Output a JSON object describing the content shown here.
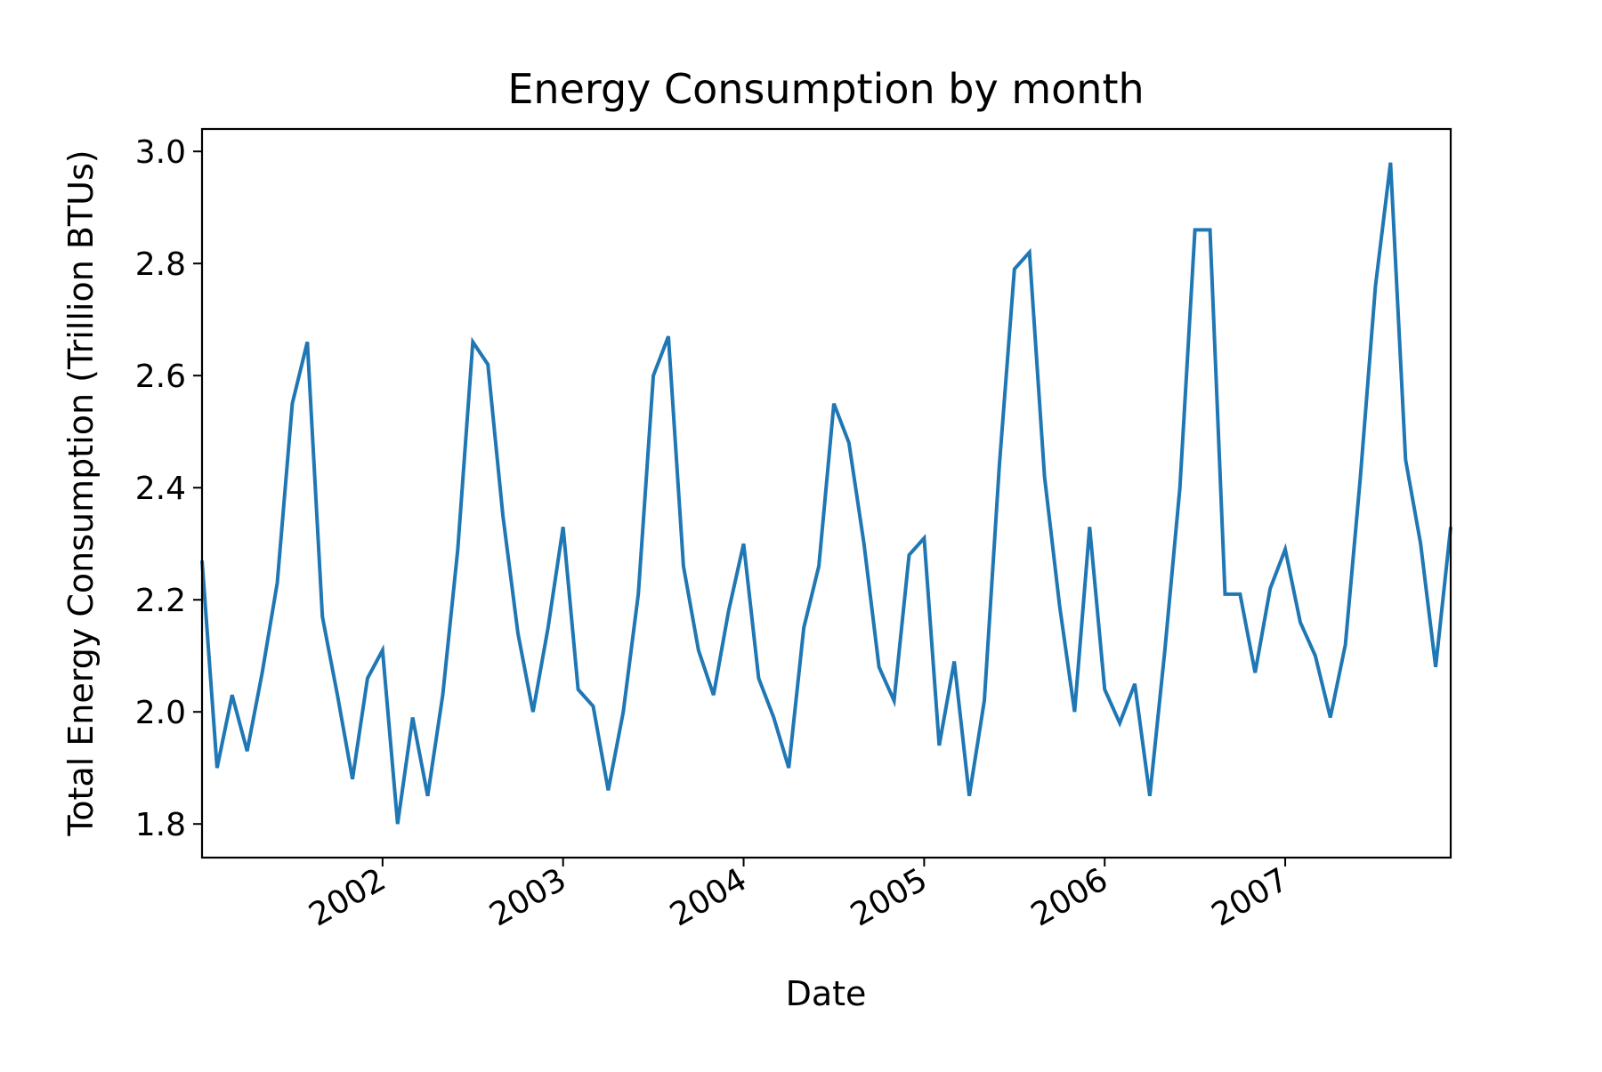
{
  "chart_data": {
    "type": "line",
    "title": "Energy Consumption by month",
    "xlabel": "Date",
    "ylabel": "Total Energy Consumption (Trillion BTUs)",
    "xlim": [
      "2001-01",
      "2007-12"
    ],
    "ylim": [
      1.74,
      3.04
    ],
    "y_ticks": [
      1.8,
      2.0,
      2.2,
      2.4,
      2.6,
      2.8,
      3.0
    ],
    "y_tick_labels": [
      "1.8",
      "2.0",
      "2.2",
      "2.4",
      "2.6",
      "2.8",
      "3.0"
    ],
    "x_ticks": [
      "2002-01",
      "2003-01",
      "2004-01",
      "2005-01",
      "2006-01",
      "2007-01"
    ],
    "x_tick_labels": [
      "2002",
      "2003",
      "2004",
      "2005",
      "2006",
      "2007"
    ],
    "grid": false,
    "series": [
      {
        "color": "#1f77b4",
        "x": [
          "2001-01",
          "2001-02",
          "2001-03",
          "2001-04",
          "2001-05",
          "2001-06",
          "2001-07",
          "2001-08",
          "2001-09",
          "2001-10",
          "2001-11",
          "2001-12",
          "2002-01",
          "2002-02",
          "2002-03",
          "2002-04",
          "2002-05",
          "2002-06",
          "2002-07",
          "2002-08",
          "2002-09",
          "2002-10",
          "2002-11",
          "2002-12",
          "2003-01",
          "2003-02",
          "2003-03",
          "2003-04",
          "2003-05",
          "2003-06",
          "2003-07",
          "2003-08",
          "2003-09",
          "2003-10",
          "2003-11",
          "2003-12",
          "2004-01",
          "2004-02",
          "2004-03",
          "2004-04",
          "2004-05",
          "2004-06",
          "2004-07",
          "2004-08",
          "2004-09",
          "2004-10",
          "2004-11",
          "2004-12",
          "2005-01",
          "2005-02",
          "2005-03",
          "2005-04",
          "2005-05",
          "2005-06",
          "2005-07",
          "2005-08",
          "2005-09",
          "2005-10",
          "2005-11",
          "2005-12",
          "2006-01",
          "2006-02",
          "2006-03",
          "2006-04",
          "2006-05",
          "2006-06",
          "2006-07",
          "2006-08",
          "2006-09",
          "2006-10",
          "2006-11",
          "2006-12",
          "2007-01",
          "2007-02",
          "2007-03",
          "2007-04",
          "2007-05",
          "2007-06",
          "2007-07",
          "2007-08",
          "2007-09",
          "2007-10",
          "2007-11",
          "2007-12"
        ],
        "y": [
          2.27,
          1.9,
          2.03,
          1.93,
          2.07,
          2.23,
          2.55,
          2.66,
          2.17,
          2.03,
          1.88,
          2.06,
          2.11,
          1.8,
          1.99,
          1.85,
          2.03,
          2.29,
          2.66,
          2.62,
          2.35,
          2.14,
          2.0,
          2.15,
          2.33,
          2.04,
          2.01,
          1.86,
          2.0,
          2.21,
          2.6,
          2.67,
          2.26,
          2.11,
          2.03,
          2.18,
          2.3,
          2.06,
          1.99,
          1.9,
          2.15,
          2.26,
          2.55,
          2.48,
          2.3,
          2.08,
          2.02,
          2.28,
          2.31,
          1.94,
          2.09,
          1.85,
          2.02,
          2.44,
          2.79,
          2.82,
          2.42,
          2.19,
          2.0,
          2.33,
          2.04,
          1.98,
          2.05,
          1.85,
          2.11,
          2.4,
          2.86,
          2.86,
          2.21,
          2.21,
          2.07,
          2.22,
          2.29,
          2.16,
          2.1,
          1.99,
          2.12,
          2.42,
          2.76,
          2.98,
          2.45,
          2.3,
          2.08,
          2.33
        ]
      }
    ]
  }
}
